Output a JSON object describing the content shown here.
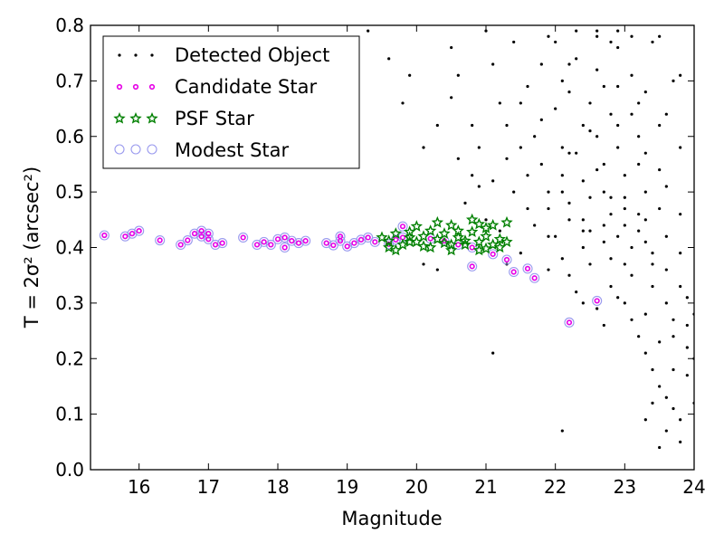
{
  "chart_data": {
    "type": "scatter",
    "xlabel": "Magnitude",
    "ylabel": "T = 2σ² (arcsec²)",
    "xlim": [
      15.3,
      24.0
    ],
    "ylim": [
      0.0,
      0.8
    ],
    "xticks": [
      "16",
      "17",
      "18",
      "19",
      "20",
      "21",
      "22",
      "23",
      "24"
    ],
    "yticks": [
      "0.0",
      "0.1",
      "0.2",
      "0.3",
      "0.4",
      "0.5",
      "0.6",
      "0.7",
      "0.8"
    ],
    "grid": false,
    "legend_position": "top-left",
    "series": [
      {
        "name": "Detected Object",
        "marker": "dot",
        "color": "#000000",
        "points": [
          [
            19.3,
            0.79
          ],
          [
            19.9,
            0.71
          ],
          [
            19.6,
            0.74
          ],
          [
            19.8,
            0.66
          ],
          [
            20.1,
            0.58
          ],
          [
            20.5,
            0.76
          ],
          [
            20.6,
            0.71
          ],
          [
            20.8,
            0.62
          ],
          [
            20.9,
            0.58
          ],
          [
            20.8,
            0.53
          ],
          [
            20.7,
            0.48
          ],
          [
            21.0,
            0.79
          ],
          [
            21.1,
            0.73
          ],
          [
            21.2,
            0.66
          ],
          [
            21.3,
            0.62
          ],
          [
            21.3,
            0.56
          ],
          [
            21.1,
            0.52
          ],
          [
            21.4,
            0.5
          ],
          [
            21.5,
            0.66
          ],
          [
            21.5,
            0.58
          ],
          [
            21.6,
            0.53
          ],
          [
            21.6,
            0.47
          ],
          [
            21.7,
            0.44
          ],
          [
            21.8,
            0.73
          ],
          [
            21.8,
            0.63
          ],
          [
            21.8,
            0.55
          ],
          [
            21.9,
            0.5
          ],
          [
            21.9,
            0.47
          ],
          [
            21.9,
            0.42
          ],
          [
            22.0,
            0.77
          ],
          [
            22.1,
            0.7
          ],
          [
            22.0,
            0.65
          ],
          [
            22.1,
            0.58
          ],
          [
            22.1,
            0.53
          ],
          [
            22.2,
            0.48
          ],
          [
            22.2,
            0.45
          ],
          [
            22.3,
            0.79
          ],
          [
            22.3,
            0.74
          ],
          [
            22.2,
            0.68
          ],
          [
            22.4,
            0.62
          ],
          [
            22.3,
            0.57
          ],
          [
            22.4,
            0.52
          ],
          [
            22.5,
            0.49
          ],
          [
            22.5,
            0.43
          ],
          [
            22.4,
            0.4
          ],
          [
            22.6,
            0.78
          ],
          [
            22.6,
            0.72
          ],
          [
            22.5,
            0.66
          ],
          [
            22.6,
            0.6
          ],
          [
            22.7,
            0.55
          ],
          [
            22.7,
            0.5
          ],
          [
            22.8,
            0.46
          ],
          [
            22.7,
            0.41
          ],
          [
            22.8,
            0.38
          ],
          [
            22.9,
            0.76
          ],
          [
            22.9,
            0.69
          ],
          [
            22.8,
            0.64
          ],
          [
            22.9,
            0.58
          ],
          [
            23.0,
            0.53
          ],
          [
            23.0,
            0.49
          ],
          [
            23.0,
            0.44
          ],
          [
            23.1,
            0.4
          ],
          [
            23.1,
            0.35
          ],
          [
            23.1,
            0.71
          ],
          [
            23.2,
            0.66
          ],
          [
            23.2,
            0.6
          ],
          [
            23.2,
            0.55
          ],
          [
            23.3,
            0.5
          ],
          [
            23.3,
            0.45
          ],
          [
            23.3,
            0.41
          ],
          [
            23.4,
            0.37
          ],
          [
            23.4,
            0.33
          ],
          [
            23.4,
            0.77
          ],
          [
            23.5,
            0.62
          ],
          [
            23.5,
            0.54
          ],
          [
            23.5,
            0.47
          ],
          [
            23.6,
            0.42
          ],
          [
            23.6,
            0.36
          ],
          [
            23.6,
            0.3
          ],
          [
            23.7,
            0.27
          ],
          [
            23.7,
            0.24
          ],
          [
            23.7,
            0.7
          ],
          [
            23.8,
            0.58
          ],
          [
            23.8,
            0.46
          ],
          [
            23.8,
            0.39
          ],
          [
            23.9,
            0.31
          ],
          [
            23.9,
            0.22
          ],
          [
            23.9,
            0.17
          ],
          [
            24.0,
            0.28
          ],
          [
            24.0,
            0.2
          ],
          [
            22.0,
            0.42
          ],
          [
            22.1,
            0.38
          ],
          [
            22.2,
            0.35
          ],
          [
            22.3,
            0.32
          ],
          [
            22.4,
            0.3
          ],
          [
            22.6,
            0.29
          ],
          [
            22.7,
            0.26
          ],
          [
            22.8,
            0.33
          ],
          [
            23.0,
            0.3
          ],
          [
            23.1,
            0.27
          ],
          [
            23.2,
            0.24
          ],
          [
            23.3,
            0.21
          ],
          [
            23.4,
            0.18
          ],
          [
            23.5,
            0.15
          ],
          [
            23.6,
            0.13
          ],
          [
            23.7,
            0.11
          ],
          [
            23.8,
            0.09
          ],
          [
            23.3,
            0.09
          ],
          [
            23.5,
            0.04
          ],
          [
            22.1,
            0.07
          ],
          [
            21.1,
            0.21
          ],
          [
            22.6,
            0.79
          ],
          [
            22.9,
            0.79
          ],
          [
            23.1,
            0.78
          ],
          [
            21.9,
            0.78
          ],
          [
            20.1,
            0.37
          ],
          [
            20.3,
            0.36
          ],
          [
            21.3,
            0.37
          ],
          [
            21.5,
            0.39
          ],
          [
            21.9,
            0.36
          ],
          [
            22.4,
            0.43
          ],
          [
            22.9,
            0.42
          ],
          [
            23.2,
            0.46
          ],
          [
            23.6,
            0.51
          ],
          [
            22.2,
            0.57
          ],
          [
            22.5,
            0.61
          ],
          [
            22.9,
            0.62
          ],
          [
            23.1,
            0.64
          ],
          [
            23.3,
            0.57
          ],
          [
            22.6,
            0.54
          ],
          [
            22.8,
            0.49
          ],
          [
            23.0,
            0.47
          ],
          [
            23.2,
            0.43
          ],
          [
            22.4,
            0.45
          ],
          [
            22.7,
            0.44
          ],
          [
            23.4,
            0.39
          ],
          [
            23.0,
            0.37
          ],
          [
            22.5,
            0.37
          ],
          [
            21.7,
            0.6
          ],
          [
            21.6,
            0.69
          ],
          [
            22.2,
            0.73
          ],
          [
            22.7,
            0.69
          ],
          [
            23.3,
            0.68
          ],
          [
            23.6,
            0.64
          ],
          [
            23.8,
            0.71
          ],
          [
            23.5,
            0.78
          ],
          [
            22.8,
            0.77
          ],
          [
            21.4,
            0.77
          ],
          [
            20.5,
            0.67
          ],
          [
            21.0,
            0.45
          ],
          [
            21.2,
            0.43
          ],
          [
            20.9,
            0.51
          ],
          [
            20.6,
            0.56
          ],
          [
            20.3,
            0.62
          ],
          [
            22.1,
            0.5
          ],
          [
            23.8,
            0.33
          ],
          [
            23.9,
            0.26
          ],
          [
            24.0,
            0.12
          ],
          [
            23.7,
            0.18
          ],
          [
            23.5,
            0.23
          ],
          [
            23.3,
            0.28
          ],
          [
            22.9,
            0.31
          ],
          [
            23.6,
            0.07
          ],
          [
            23.4,
            0.12
          ],
          [
            23.8,
            0.05
          ]
        ]
      },
      {
        "name": "Candidate Star",
        "marker": "small-circle",
        "color": "#e600e6",
        "points": [
          [
            15.5,
            0.422
          ],
          [
            15.8,
            0.42
          ],
          [
            15.9,
            0.425
          ],
          [
            16.0,
            0.43
          ],
          [
            16.3,
            0.413
          ],
          [
            16.6,
            0.405
          ],
          [
            16.7,
            0.413
          ],
          [
            16.8,
            0.425
          ],
          [
            16.9,
            0.42
          ],
          [
            16.9,
            0.43
          ],
          [
            17.0,
            0.425
          ],
          [
            17.0,
            0.415
          ],
          [
            17.1,
            0.405
          ],
          [
            17.2,
            0.408
          ],
          [
            17.5,
            0.418
          ],
          [
            17.7,
            0.405
          ],
          [
            17.8,
            0.41
          ],
          [
            17.9,
            0.405
          ],
          [
            18.0,
            0.415
          ],
          [
            18.1,
            0.418
          ],
          [
            18.1,
            0.4
          ],
          [
            18.2,
            0.412
          ],
          [
            18.3,
            0.408
          ],
          [
            18.4,
            0.412
          ],
          [
            18.7,
            0.408
          ],
          [
            18.8,
            0.404
          ],
          [
            18.9,
            0.412
          ],
          [
            18.9,
            0.42
          ],
          [
            19.0,
            0.402
          ],
          [
            19.1,
            0.408
          ],
          [
            19.2,
            0.414
          ],
          [
            19.3,
            0.418
          ],
          [
            19.4,
            0.41
          ],
          [
            19.6,
            0.406
          ],
          [
            19.7,
            0.414
          ],
          [
            19.8,
            0.418
          ],
          [
            19.8,
            0.438
          ],
          [
            20.2,
            0.416
          ],
          [
            20.4,
            0.412
          ],
          [
            20.6,
            0.405
          ],
          [
            20.8,
            0.366
          ],
          [
            20.8,
            0.4
          ],
          [
            21.1,
            0.388
          ],
          [
            21.3,
            0.378
          ],
          [
            21.4,
            0.356
          ],
          [
            21.6,
            0.362
          ],
          [
            21.7,
            0.345
          ],
          [
            22.2,
            0.265
          ],
          [
            22.6,
            0.304
          ]
        ]
      },
      {
        "name": "PSF Star",
        "marker": "star",
        "color": "#008000",
        "points": [
          [
            19.5,
            0.418
          ],
          [
            19.6,
            0.412
          ],
          [
            19.6,
            0.4
          ],
          [
            19.7,
            0.425
          ],
          [
            19.8,
            0.405
          ],
          [
            19.9,
            0.418
          ],
          [
            19.9,
            0.428
          ],
          [
            20.0,
            0.41
          ],
          [
            20.0,
            0.438
          ],
          [
            20.1,
            0.42
          ],
          [
            20.1,
            0.402
          ],
          [
            20.2,
            0.43
          ],
          [
            20.3,
            0.415
          ],
          [
            20.3,
            0.445
          ],
          [
            20.4,
            0.408
          ],
          [
            20.4,
            0.425
          ],
          [
            20.5,
            0.395
          ],
          [
            20.5,
            0.44
          ],
          [
            20.6,
            0.418
          ],
          [
            20.6,
            0.43
          ],
          [
            20.7,
            0.405
          ],
          [
            20.7,
            0.412
          ],
          [
            20.8,
            0.428
          ],
          [
            20.8,
            0.45
          ],
          [
            20.9,
            0.41
          ],
          [
            20.9,
            0.395
          ],
          [
            21.0,
            0.42
          ],
          [
            21.0,
            0.435
          ],
          [
            21.1,
            0.405
          ],
          [
            21.1,
            0.44
          ],
          [
            21.2,
            0.415
          ],
          [
            21.2,
            0.4
          ],
          [
            21.3,
            0.445
          ],
          [
            21.3,
            0.41
          ],
          [
            19.7,
            0.395
          ],
          [
            20.2,
            0.4
          ],
          [
            20.9,
            0.442
          ],
          [
            21.0,
            0.398
          ],
          [
            20.5,
            0.405
          ],
          [
            19.9,
            0.41
          ]
        ]
      },
      {
        "name": "Modest Star",
        "marker": "open-circle",
        "color": "#9999ee",
        "points": [
          [
            15.5,
            0.422
          ],
          [
            15.8,
            0.42
          ],
          [
            15.9,
            0.425
          ],
          [
            16.0,
            0.43
          ],
          [
            16.3,
            0.413
          ],
          [
            16.6,
            0.405
          ],
          [
            16.7,
            0.413
          ],
          [
            16.8,
            0.425
          ],
          [
            16.9,
            0.42
          ],
          [
            16.9,
            0.43
          ],
          [
            17.0,
            0.425
          ],
          [
            17.0,
            0.415
          ],
          [
            17.1,
            0.405
          ],
          [
            17.2,
            0.408
          ],
          [
            17.5,
            0.418
          ],
          [
            17.7,
            0.405
          ],
          [
            17.8,
            0.41
          ],
          [
            17.9,
            0.405
          ],
          [
            18.0,
            0.415
          ],
          [
            18.1,
            0.418
          ],
          [
            18.1,
            0.4
          ],
          [
            18.2,
            0.412
          ],
          [
            18.3,
            0.408
          ],
          [
            18.4,
            0.412
          ],
          [
            18.7,
            0.408
          ],
          [
            18.8,
            0.404
          ],
          [
            18.9,
            0.412
          ],
          [
            18.9,
            0.42
          ],
          [
            19.0,
            0.402
          ],
          [
            19.1,
            0.408
          ],
          [
            19.2,
            0.414
          ],
          [
            19.3,
            0.418
          ],
          [
            19.4,
            0.41
          ],
          [
            19.6,
            0.406
          ],
          [
            19.7,
            0.414
          ],
          [
            19.8,
            0.418
          ],
          [
            19.8,
            0.438
          ],
          [
            20.2,
            0.416
          ],
          [
            20.4,
            0.412
          ],
          [
            20.6,
            0.405
          ],
          [
            20.8,
            0.366
          ],
          [
            20.8,
            0.4
          ],
          [
            21.1,
            0.388
          ],
          [
            21.3,
            0.378
          ],
          [
            21.4,
            0.356
          ],
          [
            21.6,
            0.362
          ],
          [
            21.7,
            0.345
          ],
          [
            22.2,
            0.265
          ],
          [
            22.6,
            0.304
          ]
        ]
      }
    ]
  }
}
